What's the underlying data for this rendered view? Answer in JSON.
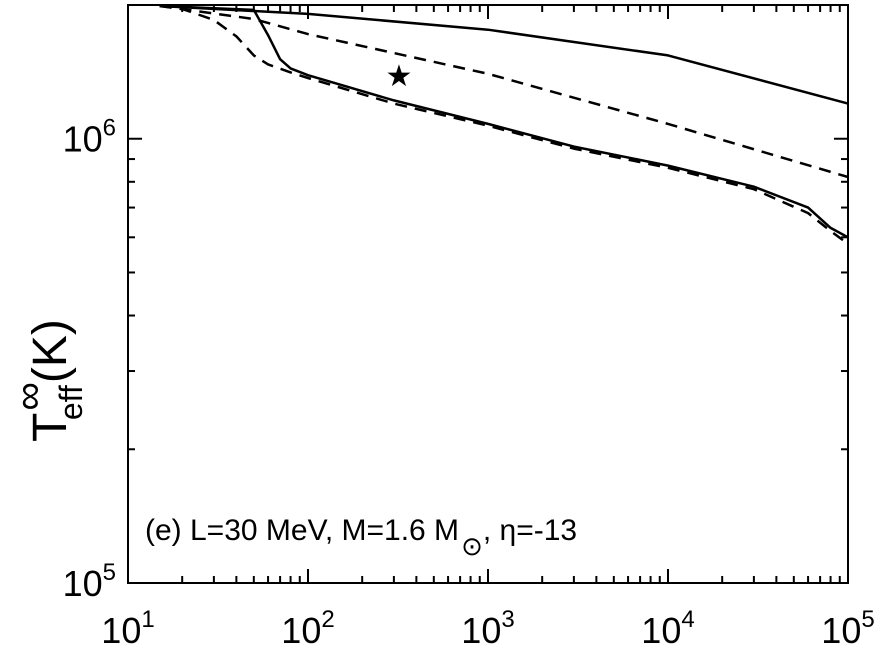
{
  "chart_data": {
    "type": "line",
    "title": "",
    "xlabel": "",
    "ylabel": "T",
    "ylabel_sup": "∞",
    "ylabel_sub": "eff",
    "ylabel_unit": "(K)",
    "x_scale": "log",
    "y_scale": "log",
    "xlim": [
      10,
      100000
    ],
    "ylim": [
      100000,
      2000000
    ],
    "grid": false,
    "x_ticks": [
      {
        "value": 10,
        "base": "10",
        "exp": "1"
      },
      {
        "value": 100,
        "base": "10",
        "exp": "2"
      },
      {
        "value": 1000,
        "base": "10",
        "exp": "3"
      },
      {
        "value": 10000,
        "base": "10",
        "exp": "4"
      },
      {
        "value": 100000,
        "base": "10",
        "exp": "5"
      }
    ],
    "y_ticks": [
      {
        "value": 100000,
        "base": "10",
        "exp": "5"
      },
      {
        "value": 1000000,
        "base": "10",
        "exp": "6"
      }
    ],
    "annotation": {
      "prefix": "(e) L=30 MeV, M=1.6 M",
      "sub": "⊙",
      "suffix": ", η=-13"
    },
    "marker": {
      "symbol": "★",
      "x": 320,
      "y": 1380000
    },
    "series": [
      {
        "style": "solid",
        "color": "#000000",
        "points": [
          [
            15,
            1990000
          ],
          [
            100,
            1910000
          ],
          [
            1000,
            1760000
          ],
          [
            10000,
            1540000
          ],
          [
            100000,
            1200000
          ]
        ]
      },
      {
        "style": "dashed",
        "color": "#000000",
        "points": [
          [
            15,
            1990000
          ],
          [
            50,
            1860000
          ],
          [
            100,
            1720000
          ],
          [
            1000,
            1400000
          ],
          [
            10000,
            1080000
          ],
          [
            100000,
            820000
          ]
        ]
      },
      {
        "style": "solid",
        "color": "#000000",
        "points": [
          [
            15,
            1990000
          ],
          [
            50,
            1950000
          ],
          [
            60,
            1710000
          ],
          [
            70,
            1510000
          ],
          [
            80,
            1440000
          ],
          [
            100,
            1390000
          ],
          [
            300,
            1220000
          ],
          [
            1000,
            1080000
          ],
          [
            3000,
            960000
          ],
          [
            10000,
            870000
          ],
          [
            30000,
            780000
          ],
          [
            60000,
            700000
          ],
          [
            80000,
            630000
          ],
          [
            100000,
            600000
          ]
        ]
      },
      {
        "style": "dashed",
        "color": "#000000",
        "points": [
          [
            15,
            1990000
          ],
          [
            20,
            1960000
          ],
          [
            30,
            1850000
          ],
          [
            40,
            1700000
          ],
          [
            50,
            1540000
          ],
          [
            60,
            1470000
          ],
          [
            80,
            1410000
          ],
          [
            100,
            1370000
          ],
          [
            300,
            1200000
          ],
          [
            1000,
            1070000
          ],
          [
            3000,
            950000
          ],
          [
            10000,
            860000
          ],
          [
            30000,
            770000
          ],
          [
            60000,
            680000
          ],
          [
            80000,
            620000
          ],
          [
            100000,
            580000
          ]
        ]
      }
    ]
  }
}
